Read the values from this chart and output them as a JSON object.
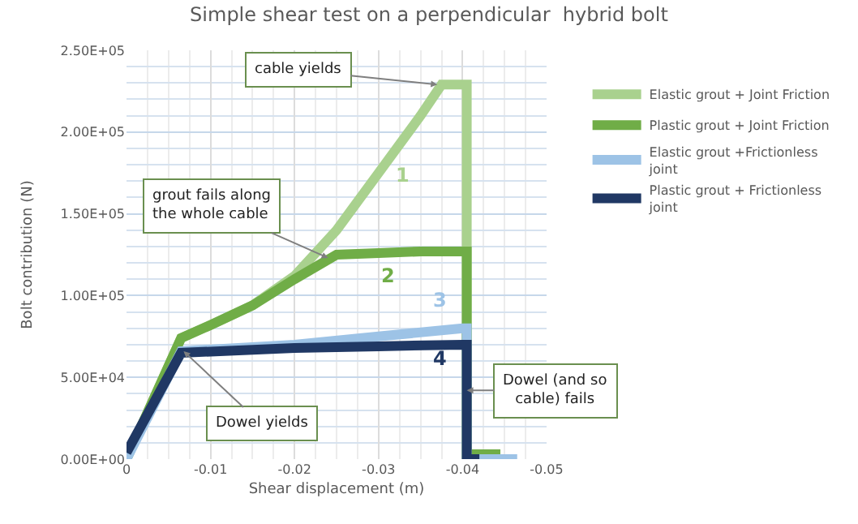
{
  "chart_data": {
    "type": "line",
    "title": "Simple shear test on a perpendicular  hybrid bolt",
    "xlabel": "Shear displacement (m)",
    "ylabel": "Bolt contribution (N)",
    "xlim": [
      0,
      -0.05
    ],
    "xticks": [
      0,
      -0.01,
      -0.02,
      -0.03,
      -0.04,
      -0.05
    ],
    "ylim": [
      0,
      250000
    ],
    "yticks": [
      {
        "value": 0,
        "label": "0.00E+00"
      },
      {
        "value": 50000,
        "label": "5.00E+04"
      },
      {
        "value": 100000,
        "label": "1.00E+05"
      },
      {
        "value": 150000,
        "label": "1.50E+05"
      },
      {
        "value": 200000,
        "label": "2.00E+05"
      },
      {
        "value": 250000,
        "label": "2.50E+05"
      }
    ],
    "grid": true,
    "legend": "right",
    "marker": "none",
    "line_style": "solid",
    "series": [
      {
        "name": "Elastic grout + Joint Friction",
        "color": "#a9d18e",
        "x": [
          0,
          -0.0065,
          -0.01,
          -0.015,
          -0.02,
          -0.025,
          -0.03,
          -0.035,
          -0.0375,
          -0.0405,
          -0.0405
        ],
        "values": [
          0,
          74000,
          82000,
          94000,
          112000,
          140000,
          175000,
          210000,
          229000,
          229000,
          0
        ]
      },
      {
        "name": "Plastic grout + Joint Friction",
        "color": "#70ad47",
        "x": [
          0,
          -0.0065,
          -0.01,
          -0.015,
          -0.02,
          -0.025,
          -0.03,
          -0.035,
          -0.0405,
          -0.0405,
          -0.0445
        ],
        "values": [
          0,
          74000,
          82000,
          94000,
          110000,
          125000,
          126000,
          127000,
          127000,
          3000,
          3000
        ]
      },
      {
        "name": "Elastic grout +Frictionless joint",
        "color": "#9dc3e6",
        "x": [
          0,
          -0.0065,
          -0.02,
          -0.03,
          -0.04,
          -0.0405,
          -0.0405,
          -0.0465
        ],
        "values": [
          0,
          66000,
          70000,
          75000,
          80000,
          80000,
          0,
          0
        ]
      },
      {
        "name": "Plastic grout + Frictionless joint",
        "color": "#203864",
        "x": [
          0,
          -0.0065,
          -0.02,
          -0.03,
          -0.04,
          -0.0405,
          -0.0405,
          -0.042
        ],
        "values": [
          4000,
          65000,
          68000,
          69000,
          70000,
          70000,
          0,
          0
        ]
      }
    ],
    "annotations": [
      {
        "text": "cable yields",
        "x": -0.037,
        "y": 229000
      },
      {
        "text": "grout fails along the whole cable",
        "x": -0.024,
        "y": 123000
      },
      {
        "text": "Dowel yields",
        "x": -0.0068,
        "y": 66000
      },
      {
        "text": "Dowel (and so cable) fails",
        "x": -0.0405,
        "y": 42000
      },
      "1",
      "2",
      "3",
      "4"
    ]
  }
}
